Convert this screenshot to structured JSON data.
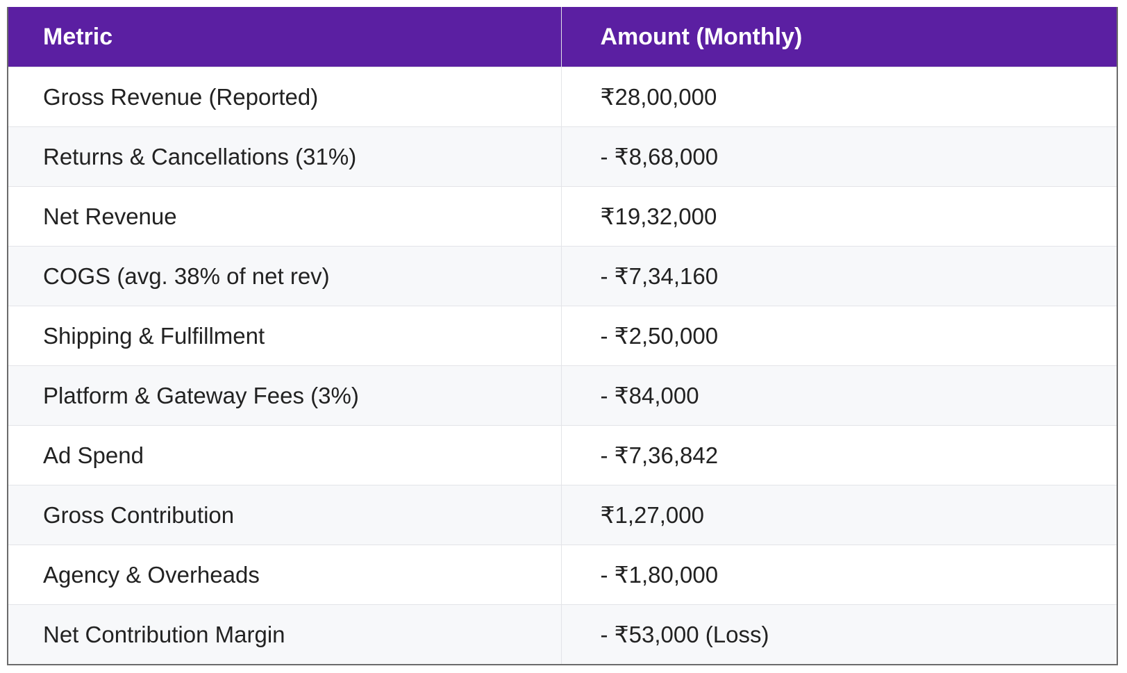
{
  "table": {
    "header": [
      "Metric",
      "Amount (Monthly)"
    ],
    "rows": [
      [
        "Gross Revenue (Reported)",
        "₹28,00,000"
      ],
      [
        "Returns & Cancellations (31%)",
        "- ₹8,68,000"
      ],
      [
        "Net Revenue",
        "₹19,32,000"
      ],
      [
        "COGS (avg. 38% of net rev)",
        "- ₹7,34,160"
      ],
      [
        "Shipping & Fulfillment",
        "- ₹2,50,000"
      ],
      [
        "Platform & Gateway Fees (3%)",
        "- ₹84,000"
      ],
      [
        "Ad Spend",
        "- ₹7,36,842"
      ],
      [
        "Gross Contribution",
        "₹1,27,000"
      ],
      [
        "Agency & Overheads",
        "- ₹1,80,000"
      ],
      [
        "Net Contribution Margin",
        "- ₹53,000 (Loss)"
      ]
    ]
  }
}
